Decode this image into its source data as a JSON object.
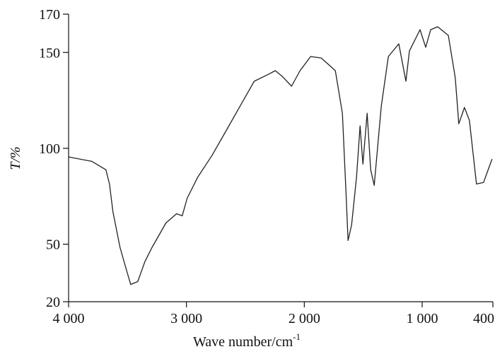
{
  "chart_data": {
    "type": "line",
    "xlabel": "Wave number/cm",
    "xlabel_superscript": "-1",
    "ylabel": "T/%",
    "xlim": [
      4000,
      400
    ],
    "ylim": [
      20,
      170
    ],
    "xticks": [
      {
        "value": 4000,
        "label": "4 000"
      },
      {
        "value": 3000,
        "label": "3 000"
      },
      {
        "value": 2000,
        "label": "2 000"
      },
      {
        "value": 1000,
        "label": "1 000"
      },
      400
    ],
    "yticks": [
      20,
      50,
      100,
      150,
      170
    ],
    "series": [
      {
        "color": "#222222",
        "x": [
          4000,
          3802,
          3683,
          3653,
          3623,
          3563,
          3503,
          3473,
          3413,
          3353,
          3293,
          3174,
          3084,
          3036,
          2994,
          2904,
          2784,
          2665,
          2545,
          2425,
          2305,
          2246,
          2186,
          2108,
          2036,
          1946,
          1856,
          1737,
          1677,
          1647,
          1629,
          1599,
          1557,
          1527,
          1503,
          1467,
          1437,
          1407,
          1347,
          1287,
          1198,
          1138,
          1108,
          1018,
          970,
          928,
          868,
          778,
          719,
          689,
          641,
          599,
          539,
          479,
          407
        ],
        "values": [
          95.5,
          93.2,
          88.8,
          81.4,
          66.7,
          48.2,
          35.3,
          29,
          30.5,
          40.8,
          48.2,
          61.1,
          65.9,
          64.8,
          74,
          85,
          96.2,
          109,
          122,
          135,
          138.6,
          140.5,
          137.5,
          132.4,
          140.5,
          147.9,
          147.1,
          140.5,
          118.3,
          77.7,
          51.9,
          60,
          85.1,
          111.7,
          91.8,
          118.3,
          88.8,
          80.7,
          122,
          147.9,
          154.5,
          135,
          150.8,
          161.9,
          152.7,
          161.9,
          163.4,
          158.9,
          136.8,
          112.8,
          121.3,
          114.6,
          81.4,
          82.2,
          94.4
        ]
      }
    ]
  }
}
